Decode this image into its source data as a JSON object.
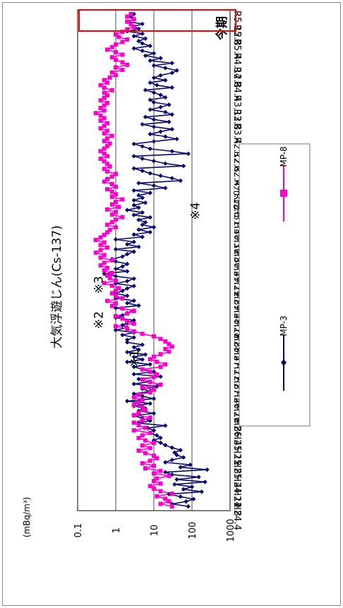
{
  "chart_data": {
    "type": "line",
    "title": "大気浮遊じん(Cs-137)",
    "ylabel": "(mBq/m³)",
    "y_scale": "log",
    "ylim": [
      0.1,
      1000
    ],
    "y_ticks": [
      "1000",
      "100",
      "10",
      "1",
      "0.1"
    ],
    "grid": true,
    "legend_placement": "right",
    "orientation": "rotated-90-clockwise",
    "x_tick_labels": [
      "H24.4",
      "H24.8",
      "H24.12",
      "H25.4",
      "H25.8",
      "H25.12",
      "H26.4",
      "H26.8",
      "H26.12",
      "H27.4",
      "H27.8",
      "H27.12",
      "H28.4",
      "H28.8",
      "H28.12",
      "H29.4",
      "H29.8",
      "H29.12",
      "H30.4",
      "H30.8",
      "H30.12",
      "H31.4",
      "R元.8",
      "R元.12",
      "R2.4",
      "R2.8",
      "R2.12",
      "R3.4",
      "R3.8",
      "R3.12",
      "R4.4",
      "R4.8",
      "R4.12",
      "R5.4",
      "R5.8",
      "R5.12"
    ],
    "series": [
      {
        "name": "MP-3",
        "color": "#0a0a6e",
        "marker": "diamond",
        "values": [
          80,
          30,
          70,
          110,
          50,
          25,
          180,
          60,
          100,
          35,
          220,
          40,
          150,
          30,
          20,
          250,
          50,
          90,
          20,
          30,
          60,
          40,
          35,
          50,
          30,
          20,
          15,
          10,
          15,
          12,
          8,
          10,
          7,
          20,
          4,
          8,
          5,
          3,
          10,
          4,
          6,
          3,
          8,
          2,
          10,
          5,
          3,
          8,
          5,
          12,
          3,
          8,
          4,
          15,
          3,
          10,
          5,
          3,
          8,
          2,
          5,
          3,
          6,
          2,
          4,
          3,
          5,
          2,
          2,
          3,
          1.5,
          3,
          1,
          2,
          1.5,
          2,
          3,
          1,
          1.5,
          2,
          3,
          1,
          4,
          2,
          3,
          1,
          2,
          1,
          1.5,
          2,
          3,
          1,
          2,
          3,
          1,
          0.5,
          2,
          1,
          1.5,
          2,
          1,
          0.8,
          1.5,
          2,
          3,
          1,
          4,
          2,
          3,
          1,
          5,
          3,
          8,
          4,
          10,
          5,
          6,
          4,
          8,
          3,
          5,
          2,
          4,
          3,
          6,
          3,
          5,
          4,
          8,
          3,
          20,
          10,
          4,
          50,
          30,
          15,
          8,
          5,
          3,
          60,
          20,
          10,
          5,
          3,
          80,
          30,
          8,
          5,
          3,
          10,
          40,
          20,
          8,
          15,
          30,
          10,
          5,
          25,
          10,
          6,
          30,
          20,
          8,
          15,
          25,
          10,
          8,
          20,
          15,
          10,
          6,
          30,
          12,
          8,
          20,
          10,
          15,
          30,
          40,
          20,
          10,
          30,
          8,
          15,
          6,
          10,
          5,
          3,
          8,
          5,
          4,
          6,
          3,
          5,
          2,
          4,
          3,
          5,
          2,
          3,
          2.5,
          3
        ],
        "note": "series values estimated from the plot; ordered from H24.4 to R5.12"
      },
      {
        "name": "MP-8",
        "color": "#ff00cc",
        "marker": "square",
        "values": [
          30,
          15,
          25,
          20,
          12,
          30,
          15,
          10,
          8,
          15,
          10,
          12,
          25,
          10,
          15,
          6,
          10,
          5,
          8,
          12,
          10,
          6,
          4,
          8,
          5,
          10,
          6,
          4,
          5,
          8,
          3,
          6,
          4,
          3,
          5,
          8,
          3,
          4,
          6,
          5,
          3,
          4,
          5,
          3,
          4,
          8,
          10,
          5,
          15,
          8,
          5,
          10,
          12,
          8,
          5,
          15,
          20,
          12,
          8,
          10,
          15,
          25,
          20,
          30,
          25,
          20,
          15,
          10,
          5,
          3,
          2,
          1,
          3,
          2,
          1.5,
          1,
          2,
          3,
          1.5,
          0.8,
          1,
          0.6,
          1.5,
          1,
          0.8,
          1,
          1.2,
          0.8,
          0.5,
          1,
          0.7,
          0.6,
          0.8,
          0.5,
          0.6,
          0.4,
          0.5,
          0.8,
          0.4,
          0.5,
          0.3,
          0.4,
          0.6,
          0.4,
          0.5,
          0.3,
          0.4,
          0.5,
          0.6,
          0.7,
          1,
          0.6,
          0.8,
          1,
          1.5,
          0.8,
          1,
          0.6,
          1.2,
          0.8,
          1,
          1.5,
          0.8,
          1,
          0.8,
          0.6,
          1,
          0.8,
          0.5,
          0.6,
          0.8,
          1,
          0.6,
          0.5,
          0.7,
          0.6,
          0.5,
          0.4,
          0.6,
          0.5,
          0.4,
          0.5,
          0.6,
          0.7,
          0.5,
          0.6,
          0.8,
          0.5,
          0.6,
          0.4,
          0.5,
          0.6,
          0.4,
          0.5,
          0.4,
          0.3,
          0.5,
          0.4,
          0.5,
          0.6,
          0.4,
          0.5,
          0.6,
          0.5,
          0.8,
          0.5,
          0.4,
          0.6,
          0.5,
          0.7,
          1,
          0.8,
          1.5,
          1,
          2,
          1.5,
          1,
          0.8,
          1.5,
          1,
          0.6,
          0.8,
          1,
          1.5,
          2,
          1.2,
          1,
          1.5,
          2,
          3,
          2.5,
          2,
          3,
          2,
          2.5
        ],
        "note": "series values estimated from the plot; ordered from H24.4 to R5.12"
      }
    ],
    "annotations": [
      {
        "text": "※1",
        "at_x": "H27.10",
        "at_y": 3
      },
      {
        "text": "※2",
        "at_x": "H28.9",
        "at_y": 0.35
      },
      {
        "text": "※3",
        "at_x": "H29.7",
        "at_y": 0.35
      },
      {
        "text": "※4",
        "at_x": "H31.4",
        "at_y": 120
      },
      {
        "text": "今期",
        "at_x": "R5.8",
        "at_y": 600
      }
    ],
    "highlight": {
      "label": "今期",
      "from": "R5.6",
      "to": "R5.12",
      "color": "#ff0000"
    }
  },
  "colors": {
    "frame": "#888888",
    "grid": "#000000",
    "highlight_box": "#ff0000"
  }
}
